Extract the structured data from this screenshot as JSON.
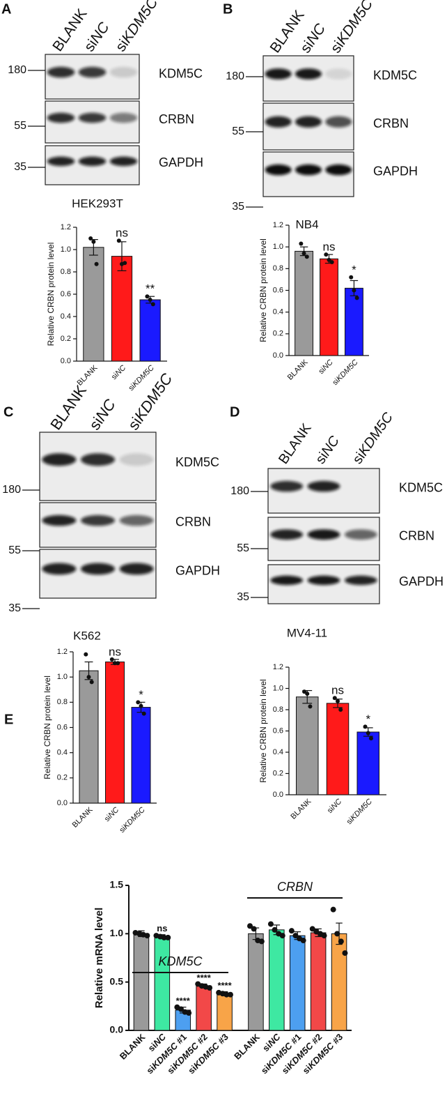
{
  "blots": [
    {
      "panel": "A",
      "lanes": [
        "BLANK",
        "siNC",
        "siKDM5C"
      ],
      "markers": [
        180,
        55,
        35
      ],
      "bands": [
        "KDM5C",
        "CRBN",
        "GAPDH"
      ],
      "cell_line": "HEK293T"
    },
    {
      "panel": "B",
      "lanes": [
        "BLANK",
        "siNC",
        "siKDM5C"
      ],
      "markers": [
        180,
        55,
        35
      ],
      "bands": [
        "KDM5C",
        "CRBN",
        "GAPDH"
      ],
      "cell_line": "NB4"
    },
    {
      "panel": "C",
      "lanes": [
        "BLANK",
        "siNC",
        "siKDM5C"
      ],
      "markers": [
        180,
        55,
        35
      ],
      "bands": [
        "KDM5C",
        "CRBN",
        "GAPDH"
      ],
      "cell_line": "K562"
    },
    {
      "panel": "D",
      "lanes": [
        "BLANK",
        "siNC",
        "siKDM5C"
      ],
      "markers": [
        180,
        55,
        35
      ],
      "bands": [
        "KDM5C",
        "CRBN",
        "GAPDH"
      ],
      "cell_line": "MV4-11"
    }
  ],
  "panel_e": "E",
  "chart_data": [
    {
      "type": "bar",
      "y_label": "Relative CRBN protein level",
      "categories": [
        "BLANK",
        "siNC",
        "siKDM5C"
      ],
      "values": [
        1.02,
        0.94,
        0.55
      ],
      "errors": [
        0.07,
        0.13,
        0.03
      ],
      "points": [
        [
          1.1,
          1.07,
          0.87
        ],
        [
          1.08,
          0.87,
          0.88
        ],
        [
          0.58,
          0.55,
          0.51
        ]
      ],
      "annotations": [
        null,
        "ns",
        "**"
      ],
      "colors": [
        "#9a9a9a",
        "#ff1a1a",
        "#1a1aff"
      ],
      "ylim": [
        0,
        1.2
      ],
      "yticks": [
        {
          "value": 0,
          "label": "0.0"
        },
        0.2,
        0.4,
        0.6,
        0.8,
        {
          "value": 1,
          "label": "1.0"
        },
        1.2
      ]
    },
    {
      "type": "bar",
      "y_label": "Relative CRBN protein level",
      "categories": [
        "BLANK",
        "siNC",
        "siKDM5C"
      ],
      "values": [
        0.96,
        0.89,
        0.62
      ],
      "errors": [
        0.04,
        0.04,
        0.07
      ],
      "points": [
        [
          1.03,
          0.94,
          0.91
        ],
        [
          0.93,
          0.88,
          0.86
        ],
        [
          0.72,
          0.6,
          0.53
        ]
      ],
      "annotations": [
        null,
        "ns",
        "*"
      ],
      "colors": [
        "#9a9a9a",
        "#ff1a1a",
        "#1a1aff"
      ],
      "ylim": [
        0,
        1.2
      ],
      "yticks": [
        {
          "value": 0,
          "label": "0.0"
        },
        0.2,
        0.4,
        0.6,
        0.8,
        {
          "value": 1,
          "label": "1.0"
        },
        1.2
      ]
    },
    {
      "type": "bar",
      "y_label": "Relative CRBN protein level",
      "categories": [
        "BLANK",
        "siNC",
        "siKDM5C"
      ],
      "values": [
        1.05,
        1.12,
        0.76
      ],
      "errors": [
        0.07,
        0.02,
        0.04
      ],
      "points": [
        [
          1.18,
          1.0,
          0.96
        ],
        [
          1.14,
          1.11,
          1.11
        ],
        [
          0.8,
          0.77,
          0.71
        ]
      ],
      "annotations": [
        null,
        "ns",
        "*"
      ],
      "colors": [
        "#9a9a9a",
        "#ff1a1a",
        "#1a1aff"
      ],
      "ylim": [
        0,
        1.2
      ],
      "yticks": [
        {
          "value": 0,
          "label": "0.0"
        },
        0.2,
        0.4,
        0.6,
        0.8,
        {
          "value": 1,
          "label": "1.0"
        },
        1.2
      ]
    },
    {
      "type": "bar",
      "y_label": "Relative CRBN protein level",
      "categories": [
        "BLANK",
        "siNC",
        "siKDM5C"
      ],
      "values": [
        0.92,
        0.86,
        0.59
      ],
      "errors": [
        0.06,
        0.04,
        0.04
      ],
      "points": [
        [
          0.97,
          0.95,
          0.83
        ],
        [
          0.91,
          0.88,
          0.8
        ],
        [
          0.64,
          0.58,
          0.53
        ]
      ],
      "annotations": [
        null,
        "ns",
        "*"
      ],
      "colors": [
        "#9a9a9a",
        "#ff1a1a",
        "#1a1aff"
      ],
      "ylim": [
        0,
        1.2
      ],
      "yticks": [
        {
          "value": 0,
          "label": "0.0"
        },
        0.2,
        0.4,
        0.6,
        0.8,
        {
          "value": 1,
          "label": "1.0"
        },
        1.2
      ]
    },
    {
      "type": "bar",
      "y_label": "Relative mRNA level",
      "categories": [
        "BLANK",
        "siNC",
        "siKDM5C #1",
        "siKDM5C #2",
        "siKDM5C #3",
        "BLANK",
        "siNC",
        "siKDM5C #1",
        "siKDM5C #2",
        "siKDM5C #3"
      ],
      "values": [
        1.0,
        0.97,
        0.21,
        0.46,
        0.38,
        1.0,
        1.04,
        0.98,
        1.01,
        1.0
      ],
      "errors": [
        0.03,
        0.02,
        0.03,
        0.02,
        0.02,
        0.06,
        0.05,
        0.04,
        0.04,
        0.11
      ],
      "points": [
        [
          1.01,
          1.0,
          0.99,
          0.98
        ],
        [
          0.98,
          0.97,
          0.96,
          0.96
        ],
        [
          0.24,
          0.22,
          0.19,
          0.18
        ],
        [
          0.48,
          0.46,
          0.45,
          0.44
        ],
        [
          0.39,
          0.38,
          0.37,
          0.37
        ],
        [
          1.08,
          1.05,
          0.93,
          0.92
        ],
        [
          1.1,
          1.04,
          1.0,
          0.98
        ],
        [
          1.03,
          0.98,
          0.95,
          0.93
        ],
        [
          1.05,
          1.02,
          1.0,
          0.98
        ],
        [
          1.25,
          1.0,
          0.92,
          0.8
        ]
      ],
      "annotations": [
        null,
        "ns",
        "****",
        "****",
        "****",
        null,
        null,
        null,
        null,
        null
      ],
      "colors": [
        "#9a9a9a",
        "#3ee8a2",
        "#4d9ff0",
        "#f24848",
        "#f8a448",
        "#9a9a9a",
        "#3ee8a2",
        "#4d9ff0",
        "#f24848",
        "#f8a448"
      ],
      "groups": [
        {
          "name": "KDM5C",
          "size": 5
        },
        {
          "name": "CRBN",
          "size": 5
        }
      ],
      "ylim": [
        0,
        1.5
      ],
      "yticks": [
        {
          "value": 0,
          "label": "0.0"
        },
        0.5,
        {
          "value": 1,
          "label": "1.0"
        },
        1.5
      ]
    }
  ]
}
